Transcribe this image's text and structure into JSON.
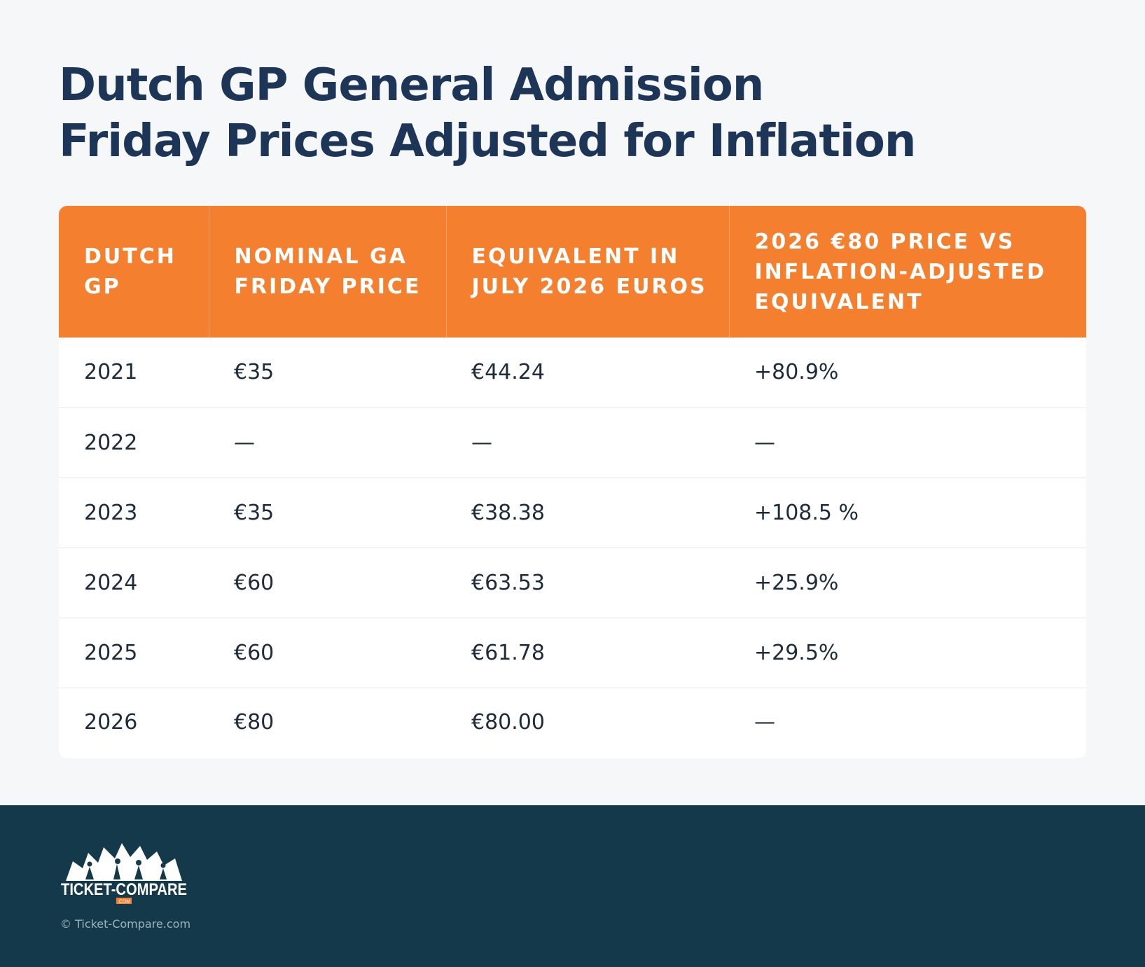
{
  "title": {
    "line1": "Dutch GP General Admission",
    "line2": "Friday Prices Adjusted for Inflation"
  },
  "table": {
    "headers": [
      [
        "DUTCH",
        "GP"
      ],
      [
        "NOMINAL GA",
        "FRIDAY PRICE"
      ],
      [
        "EQUIVALENT IN",
        "JULY 2026 EUROS"
      ],
      [
        "2026 €80 PRICE VS",
        "INFLATION-ADJUSTED",
        "EQUIVALENT"
      ]
    ],
    "rows": [
      [
        "2021",
        "€35",
        "€44.24",
        "+80.9%"
      ],
      [
        "2022",
        "—",
        "—",
        "—"
      ],
      [
        "2023",
        "€35",
        "€38.38",
        "+108.5 %"
      ],
      [
        "2024",
        "€60",
        "€63.53",
        "+25.9%"
      ],
      [
        "2025",
        "€60",
        "€61.78",
        "+29.5%"
      ],
      [
        "2026",
        "€80",
        "€80.00",
        "—"
      ]
    ]
  },
  "footer": {
    "logo_text": "TICKET-COMPARE",
    "logo_subtext": ".COM",
    "copyright": "© Ticket-Compare.com"
  },
  "colors": {
    "title": "#1d3557",
    "header_bg": "#f47f2f",
    "footer_bg": "#13394b",
    "page_bg": "#f6f7f9"
  }
}
